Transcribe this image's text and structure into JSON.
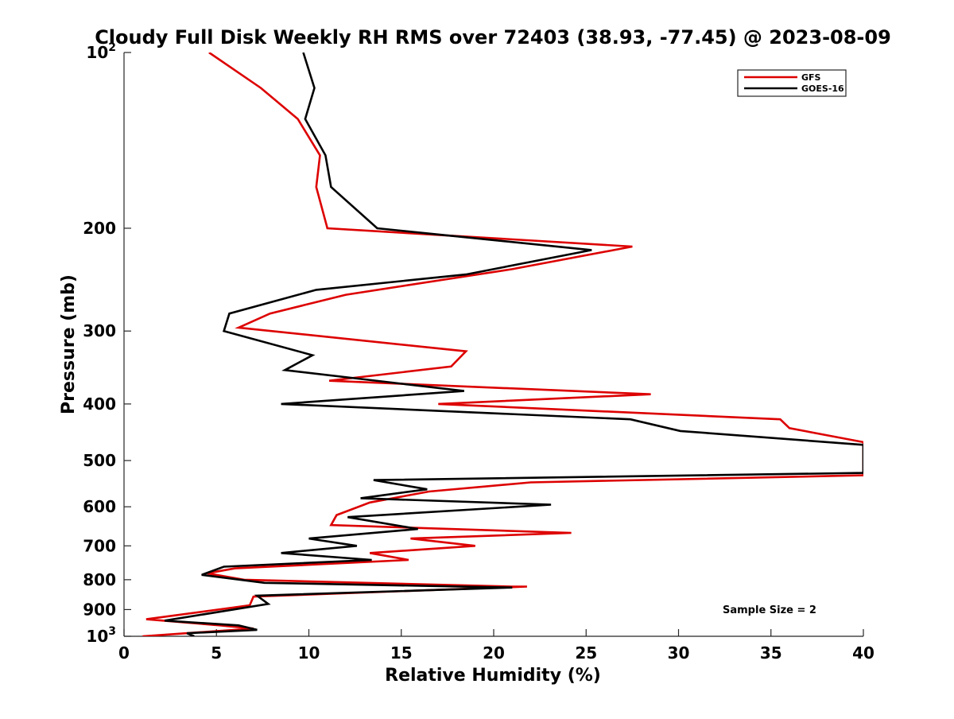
{
  "chart_data": {
    "type": "line",
    "title": "Cloudy Full Disk Weekly RH RMS over 72403 (38.93, -77.45) @ 2023-08-09",
    "xlabel": "Relative Humidity (%)",
    "ylabel": "Pressure (mb)",
    "xlim": [
      0,
      40
    ],
    "ylim": [
      100,
      1000
    ],
    "y_scale": "log",
    "y_reversed": true,
    "grid": false,
    "legend_position": "top-right",
    "x_ticks": [
      "0",
      "5",
      "10",
      "15",
      "20",
      "25",
      "30",
      "35",
      "40"
    ],
    "y_ticks": [
      {
        "value": 100,
        "base": "10",
        "exp": "2"
      },
      {
        "value": 200,
        "label": "200"
      },
      {
        "value": 300,
        "label": "300"
      },
      {
        "value": 400,
        "label": "400"
      },
      {
        "value": 500,
        "label": "500"
      },
      {
        "value": 600,
        "label": "600"
      },
      {
        "value": 700,
        "label": "700"
      },
      {
        "value": 800,
        "label": "800"
      },
      {
        "value": 900,
        "label": "900"
      },
      {
        "value": 1000,
        "base": "10",
        "exp": "3"
      }
    ],
    "annotation": "Sample Size = 2",
    "series": [
      {
        "name": "GFS",
        "color": "#dd0000",
        "points": [
          [
            4.6,
            100
          ],
          [
            7.4,
            115
          ],
          [
            9.4,
            130
          ],
          [
            10.6,
            150
          ],
          [
            10.4,
            170
          ],
          [
            11.0,
            200
          ],
          [
            27.5,
            215
          ],
          [
            21.0,
            235
          ],
          [
            12.0,
            260
          ],
          [
            7.9,
            280
          ],
          [
            6.2,
            296
          ],
          [
            18.5,
            325
          ],
          [
            17.7,
            345
          ],
          [
            11.1,
            365
          ],
          [
            28.5,
            385
          ],
          [
            17.0,
            400
          ],
          [
            35.5,
            425
          ],
          [
            36.0,
            440
          ],
          [
            40.0,
            465
          ],
          [
            40.0,
            530
          ],
          [
            22.0,
            545
          ],
          [
            16.5,
            565
          ],
          [
            13.3,
            590
          ],
          [
            11.5,
            620
          ],
          [
            11.2,
            645
          ],
          [
            24.2,
            665
          ],
          [
            15.5,
            680
          ],
          [
            19.0,
            700
          ],
          [
            13.3,
            720
          ],
          [
            15.4,
            740
          ],
          [
            6.0,
            765
          ],
          [
            4.5,
            780
          ],
          [
            6.5,
            800
          ],
          [
            21.0,
            822
          ],
          [
            21.8,
            822
          ],
          [
            7.0,
            855
          ],
          [
            6.8,
            885
          ],
          [
            1.2,
            935
          ],
          [
            5.2,
            958
          ],
          [
            7.0,
            970
          ],
          [
            1.0,
            1000
          ]
        ]
      },
      {
        "name": "GOES-16",
        "color": "#000000",
        "points": [
          [
            9.7,
            100
          ],
          [
            10.3,
            115
          ],
          [
            9.8,
            130
          ],
          [
            10.9,
            150
          ],
          [
            11.2,
            170
          ],
          [
            13.7,
            200
          ],
          [
            25.3,
            218
          ],
          [
            18.5,
            240
          ],
          [
            10.4,
            255
          ],
          [
            5.7,
            280
          ],
          [
            5.4,
            300
          ],
          [
            10.2,
            330
          ],
          [
            8.7,
            350
          ],
          [
            18.4,
            380
          ],
          [
            8.5,
            400
          ],
          [
            27.4,
            425
          ],
          [
            30.1,
            445
          ],
          [
            40.0,
            470
          ],
          [
            40.0,
            525
          ],
          [
            13.5,
            540
          ],
          [
            16.4,
            560
          ],
          [
            12.8,
            580
          ],
          [
            23.1,
            595
          ],
          [
            12.1,
            625
          ],
          [
            15.9,
            655
          ],
          [
            10.0,
            680
          ],
          [
            12.6,
            700
          ],
          [
            8.5,
            720
          ],
          [
            13.4,
            740
          ],
          [
            5.4,
            760
          ],
          [
            4.2,
            785
          ],
          [
            7.6,
            810
          ],
          [
            21.0,
            825
          ],
          [
            7.2,
            852
          ],
          [
            7.8,
            880
          ],
          [
            2.2,
            940
          ],
          [
            6.2,
            958
          ],
          [
            7.2,
            975
          ],
          [
            3.4,
            988
          ],
          [
            3.8,
            1000
          ]
        ]
      }
    ]
  }
}
